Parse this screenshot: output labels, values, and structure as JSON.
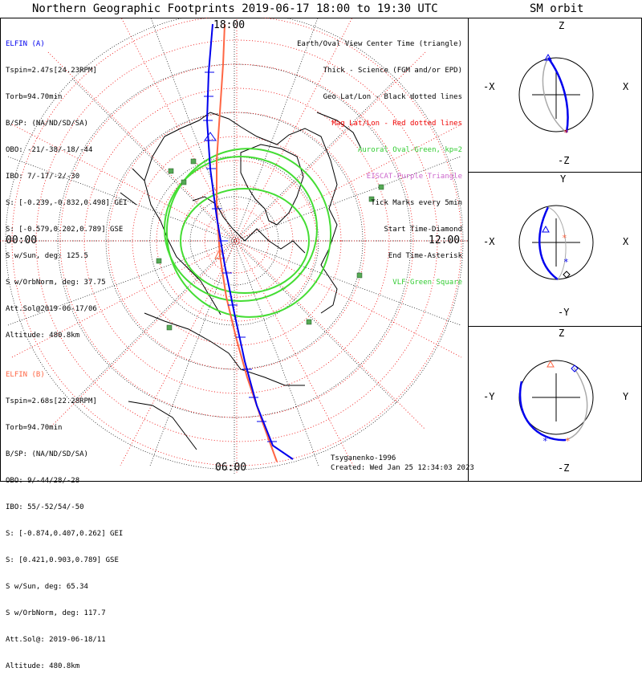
{
  "title": "Northern Geographic Footprints 2019-06-17 18:00 to 19:30 UTC",
  "orbit_title": "SM orbit",
  "mlt_labels": {
    "top": "18:00",
    "left": "00:00",
    "right": "12:00",
    "bottom": "06:00"
  },
  "elfin_a": {
    "name": "ELFIN (A)",
    "color": "#0000ff",
    "lines": [
      "Tspin=2.47s[24.23RPM]",
      "Torb=94.70min",
      "B/SP: (NA/ND/SD/SA)",
      "OBO: -21/-38/-18/-44",
      "IBO: 7/-17/-2/-30",
      "S: [-0.239,-0.832,0.498] GEI",
      "S: [-0.579,0.202,0.789] GSE",
      "S w/Sun, deg: 125.5",
      "S w/OrbNorm, deg: 37.75",
      "Att.Sol@2019-06-17/06",
      "Altitude: 480.8km"
    ]
  },
  "elfin_b": {
    "name": "ELFIN (B)",
    "color": "#ff6644",
    "lines": [
      "Tspin=2.68s[22.28RPM]",
      "Torb=94.70min",
      "B/SP: (NA/ND/SD/SA)",
      "OBO: 9/-44/28/-28",
      "IBO: 55/-52/54/-50",
      "S: [-0.874,0.407,0.262] GEI",
      "S: [0.421,0.903,0.789] GSE",
      "S w/Sun, deg: 65.34",
      "S w/OrbNorm, deg: 117.7",
      "Att.Sol@: 2019-06-18/11",
      "Altitude: 480.8km"
    ]
  },
  "legend": [
    {
      "text": "Earth/Oval View Center Time (triangle)",
      "color": "#000000"
    },
    {
      "text": "Thick - Science (FGM and/or EPD)",
      "color": "#000000"
    },
    {
      "text": "Geo Lat/Lon - Black dotted lines",
      "color": "#000000"
    },
    {
      "text": "Mag Lat/Lon - Red dotted lines",
      "color": "#ee0000"
    },
    {
      "text": "Auroral Oval-Green, kp=2",
      "color": "#33cc33"
    },
    {
      "text": "EISCAT-Purple Triangle",
      "color": "#cc66cc"
    },
    {
      "text": "Tick Marks every 5min",
      "color": "#000000"
    },
    {
      "text": "Start Time-Diamond",
      "color": "#000000"
    },
    {
      "text": "End Time-Asterisk",
      "color": "#000000"
    },
    {
      "text": "VLF-Green Square",
      "color": "#33cc33"
    }
  ],
  "credit": "Tsyganenko-1996",
  "created": "Created: Wed Jan 25 12:34:03 2023",
  "panels": [
    {
      "top": "Z",
      "bottom": "-Z",
      "left": "-X",
      "right": "X"
    },
    {
      "top": "Y",
      "bottom": "-Y",
      "left": "-X",
      "right": "X"
    },
    {
      "top": "Z",
      "bottom": "-Z",
      "left": "-Y",
      "right": "Y"
    }
  ]
}
